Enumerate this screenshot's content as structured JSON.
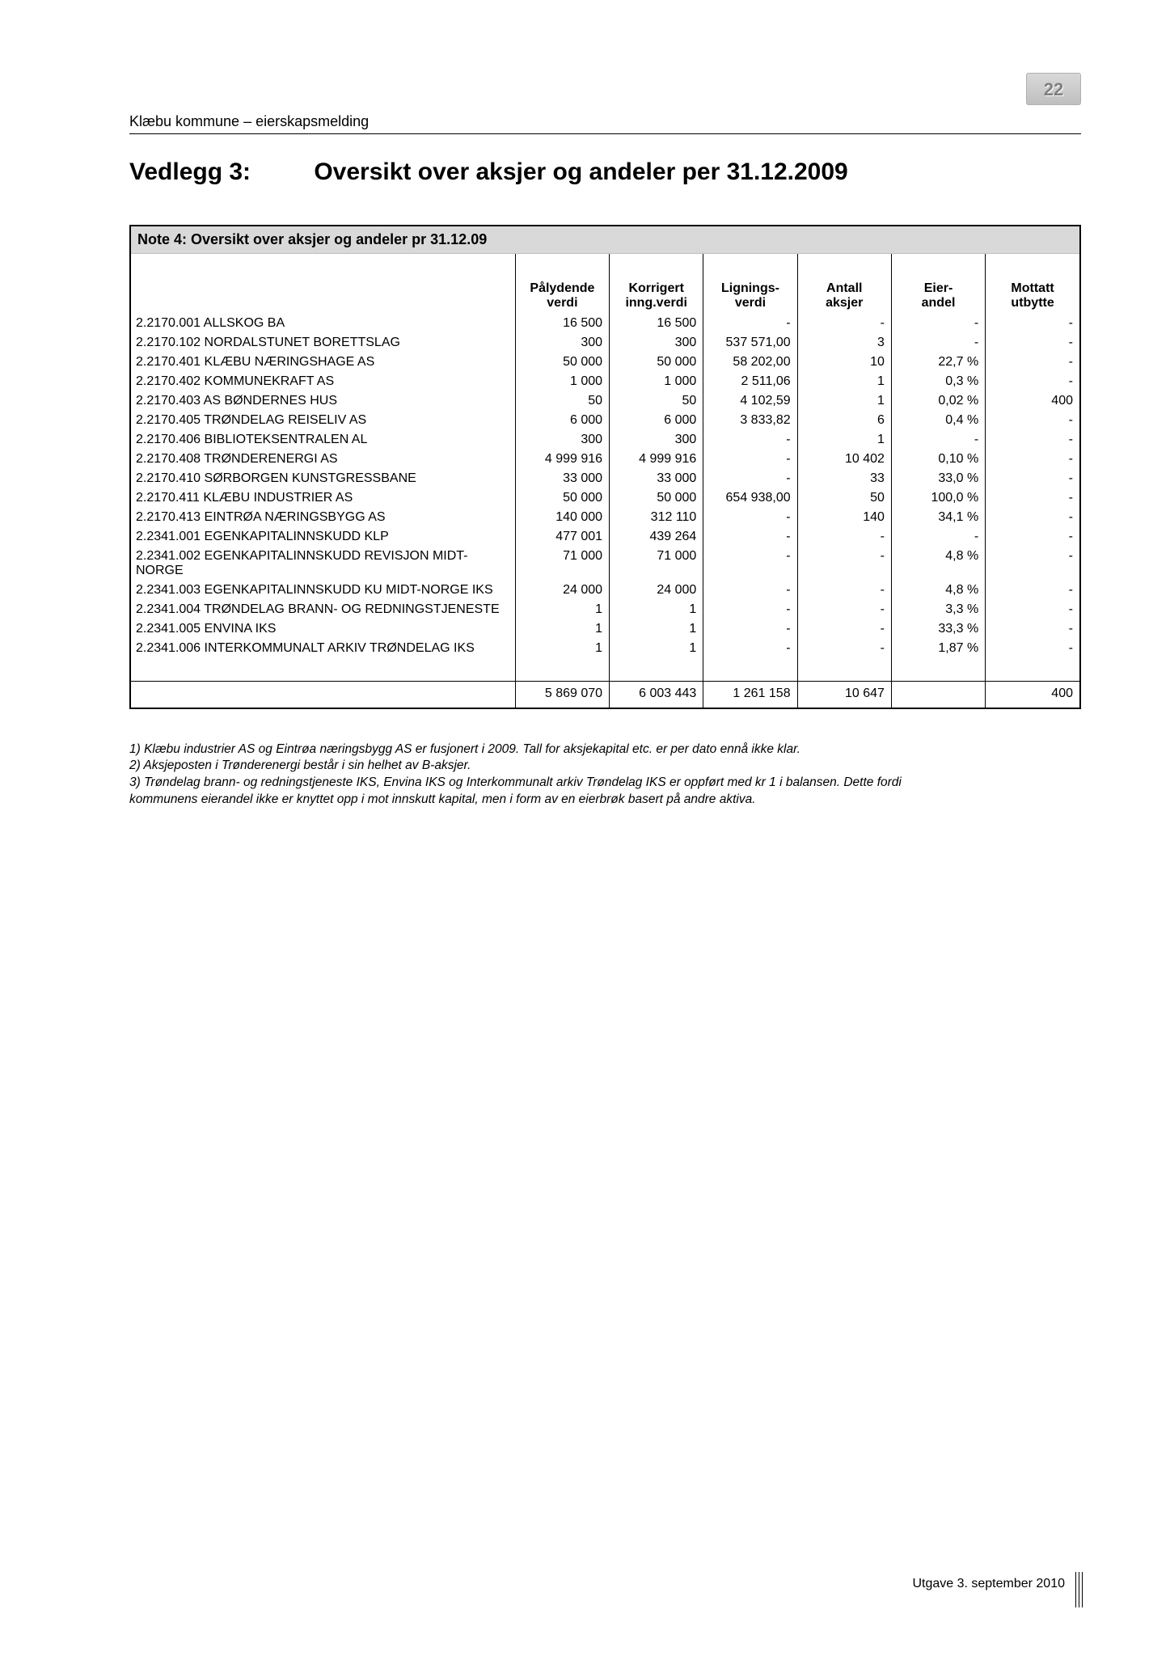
{
  "page_number": "22",
  "doc_header": "Klæbu kommune – eierskapsmelding",
  "title_prefix": "Vedlegg 3:",
  "title_main": "Oversikt over aksjer og andeler per 31.12.2009",
  "note_bar": "Note 4: Oversikt over aksjer og andeler pr 31.12.09",
  "columns": {
    "c1_a": "Pålydende",
    "c1_b": "verdi",
    "c2_a": "Korrigert",
    "c2_b": "inng.verdi",
    "c3_a": "Lignings-",
    "c3_b": "verdi",
    "c4_a": "Antall",
    "c4_b": "aksjer",
    "c5_a": "Eier-",
    "c5_b": "andel",
    "c6_a": "Mottatt",
    "c6_b": "utbytte"
  },
  "rows": [
    {
      "name": "2.2170.001 ALLSKOG BA",
      "v1": "16 500",
      "v2": "16 500",
      "v3": "-",
      "v4": "-",
      "v5": "-",
      "v6": "-"
    },
    {
      "name": "2.2170.102 NORDALSTUNET BORETTSLAG",
      "v1": "300",
      "v2": "300",
      "v3": "537 571,00",
      "v4": "3",
      "v5": "-",
      "v6": "-"
    },
    {
      "name": "2.2170.401 KLÆBU NÆRINGSHAGE AS",
      "v1": "50 000",
      "v2": "50 000",
      "v3": "58 202,00",
      "v4": "10",
      "v5": "22,7 %",
      "v6": "-"
    },
    {
      "name": "2.2170.402 KOMMUNEKRAFT AS",
      "v1": "1 000",
      "v2": "1 000",
      "v3": "2 511,06",
      "v4": "1",
      "v5": "0,3 %",
      "v6": "-"
    },
    {
      "name": "2.2170.403 AS BØNDERNES HUS",
      "v1": "50",
      "v2": "50",
      "v3": "4 102,59",
      "v4": "1",
      "v5": "0,02 %",
      "v6": "400"
    },
    {
      "name": "2.2170.405 TRØNDELAG REISELIV AS",
      "v1": "6 000",
      "v2": "6 000",
      "v3": "3 833,82",
      "v4": "6",
      "v5": "0,4 %",
      "v6": "-"
    },
    {
      "name": "2.2170.406 BIBLIOTEKSENTRALEN AL",
      "v1": "300",
      "v2": "300",
      "v3": "-",
      "v4": "1",
      "v5": "-",
      "v6": "-"
    },
    {
      "name": "2.2170.408 TRØNDERENERGI AS",
      "v1": "4 999 916",
      "v2": "4 999 916",
      "v3": "-",
      "v4": "10 402",
      "v5": "0,10 %",
      "v6": "-"
    },
    {
      "name": "2.2170.410 SØRBORGEN KUNSTGRESSBANE",
      "v1": "33 000",
      "v2": "33 000",
      "v3": "-",
      "v4": "33",
      "v5": "33,0 %",
      "v6": "-"
    },
    {
      "name": "2.2170.411 KLÆBU INDUSTRIER AS",
      "v1": "50 000",
      "v2": "50 000",
      "v3": "654 938,00",
      "v4": "50",
      "v5": "100,0 %",
      "v6": "-"
    },
    {
      "name": "2.2170.413 EINTRØA NÆRINGSBYGG AS",
      "v1": "140 000",
      "v2": "312 110",
      "v3": "-",
      "v4": "140",
      "v5": "34,1 %",
      "v6": "-"
    },
    {
      "name": "2.2341.001 EGENKAPITALINNSKUDD KLP",
      "v1": "477 001",
      "v2": "439 264",
      "v3": "-",
      "v4": "-",
      "v5": "-",
      "v6": "-"
    },
    {
      "name": "2.2341.002 EGENKAPITALINNSKUDD REVISJON MIDT-NORGE",
      "v1": "71 000",
      "v2": "71 000",
      "v3": "-",
      "v4": "-",
      "v5": "4,8 %",
      "v6": "-"
    },
    {
      "name": "2.2341.003 EGENKAPITALINNSKUDD KU MIDT-NORGE IKS",
      "v1": "24 000",
      "v2": "24 000",
      "v3": "-",
      "v4": "-",
      "v5": "4,8 %",
      "v6": "-"
    },
    {
      "name": "2.2341.004 TRØNDELAG BRANN- OG REDNINGSTJENESTE",
      "v1": "1",
      "v2": "1",
      "v3": "-",
      "v4": "-",
      "v5": "3,3 %",
      "v6": "-"
    },
    {
      "name": "2.2341.005 ENVINA IKS",
      "v1": "1",
      "v2": "1",
      "v3": "-",
      "v4": "-",
      "v5": "33,3 %",
      "v6": "-"
    },
    {
      "name": "2.2341.006 INTERKOMMUNALT ARKIV TRØNDELAG IKS",
      "v1": "1",
      "v2": "1",
      "v3": "-",
      "v4": "-",
      "v5": "1,87 %",
      "v6": "-"
    }
  ],
  "totals": {
    "v1": "5 869 070",
    "v2": "6 003 443",
    "v3": "1 261 158",
    "v4": "10 647",
    "v5": "",
    "v6": "400"
  },
  "footnotes": [
    "1) Klæbu industrier AS og Eintrøa næringsbygg AS er fusjonert i 2009. Tall for aksjekapital etc. er per dato ennå ikke klar.",
    "2) Aksjeposten i Trønderenergi består i sin helhet av B-aksjer.",
    "3) Trøndelag brann- og redningstjeneste IKS, Envina IKS og Interkommunalt arkiv Trøndelag IKS er oppført med kr 1 i balansen. Dette fordi kommunens eierandel ikke er knyttet opp i mot innskutt kapital, men i form av en eierbrøk basert på andre aktiva."
  ],
  "footer": "Utgave 3. september 2010"
}
